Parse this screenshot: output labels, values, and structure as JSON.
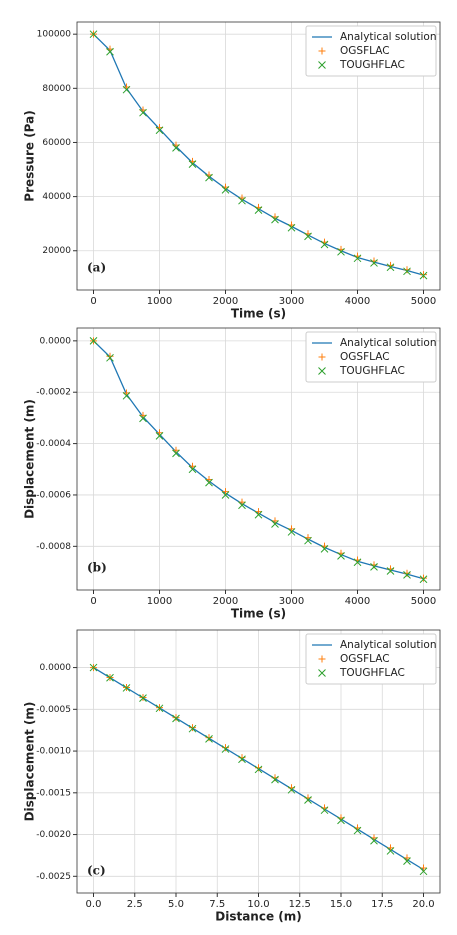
{
  "chart_data": [
    {
      "type": "line",
      "panel_label": "(a)",
      "x_label": "Time (s)",
      "y_label": "Pressure (Pa)",
      "x": [
        0,
        250,
        500,
        750,
        1000,
        1250,
        1500,
        1750,
        2000,
        2250,
        2500,
        2750,
        3000,
        3250,
        3500,
        3750,
        4000,
        4250,
        4500,
        4750,
        5000
      ],
      "series": [
        {
          "name": "Analytical solution",
          "color": "#1f77b4",
          "marker": "line",
          "values": [
            100000,
            94000,
            80000,
            71500,
            65000,
            58500,
            52500,
            47500,
            43000,
            39000,
            35500,
            32000,
            29000,
            25800,
            22700,
            20000,
            17500,
            15800,
            14200,
            12700,
            11000
          ]
        },
        {
          "name": "OGSFLAC",
          "color": "#ff7f0e",
          "marker": "+",
          "values": [
            100000,
            94500,
            80500,
            72000,
            65500,
            59000,
            53000,
            48000,
            43500,
            39500,
            36000,
            32500,
            29500,
            26300,
            23200,
            20500,
            18000,
            16200,
            14600,
            13000,
            11200
          ]
        },
        {
          "name": "TOUGHFLAC",
          "color": "#2ca02c",
          "marker": "x",
          "values": [
            100000,
            93500,
            79500,
            71000,
            64500,
            58000,
            52000,
            47000,
            42500,
            38500,
            35000,
            31500,
            28500,
            25300,
            22300,
            19600,
            17200,
            15500,
            13900,
            12400,
            10800
          ]
        }
      ],
      "xlim": [
        -250,
        5250
      ],
      "ylim": [
        5500,
        104500
      ],
      "xticks": [
        0,
        1000,
        2000,
        3000,
        4000,
        5000
      ],
      "yticks": [
        20000,
        40000,
        60000,
        80000,
        100000
      ],
      "grid": true,
      "legend": "upper right"
    },
    {
      "type": "line",
      "panel_label": "(b)",
      "x_label": "Time (s)",
      "y_label": "Displacement (m)",
      "x": [
        0,
        250,
        500,
        750,
        1000,
        1250,
        1500,
        1750,
        2000,
        2250,
        2500,
        2750,
        3000,
        3250,
        3500,
        3750,
        4000,
        4250,
        4500,
        4750,
        5000
      ],
      "series": [
        {
          "name": "Analytical solution",
          "color": "#1f77b4",
          "marker": "line",
          "values": [
            0,
            -6.24e-05,
            -0.000208,
            -0.000296,
            -0.000364,
            -0.000432,
            -0.000494,
            -0.000546,
            -0.000593,
            -0.000634,
            -0.000671,
            -0.000707,
            -0.000738,
            -0.000772,
            -0.000804,
            -0.000832,
            -0.000858,
            -0.000876,
            -0.000892,
            -0.000908,
            -0.000926
          ]
        },
        {
          "name": "OGSFLAC",
          "color": "#ff7f0e",
          "marker": "+",
          "values": [
            0,
            -6e-05,
            -0.000203,
            -0.00029,
            -0.000358,
            -0.000426,
            -0.000488,
            -0.00054,
            -0.000587,
            -0.000628,
            -0.000665,
            -0.000701,
            -0.000732,
            -0.000766,
            -0.000799,
            -0.000827,
            -0.000853,
            -0.000872,
            -0.000888,
            -0.000905,
            -0.000924
          ]
        },
        {
          "name": "TOUGHFLAC",
          "color": "#2ca02c",
          "marker": "x",
          "values": [
            0,
            -6.6e-05,
            -0.000214,
            -0.000302,
            -0.00037,
            -0.000438,
            -0.0005,
            -0.000552,
            -0.0006,
            -0.00064,
            -0.000677,
            -0.000713,
            -0.000744,
            -0.000778,
            -0.00081,
            -0.000837,
            -0.000862,
            -0.00088,
            -0.000896,
            -0.000911,
            -0.000928
          ]
        }
      ],
      "xlim": [
        -250,
        5250
      ],
      "ylim": [
        -0.00097,
        5e-05
      ],
      "xticks": [
        0,
        1000,
        2000,
        3000,
        4000,
        5000
      ],
      "yticks": [
        {
          "value": -0.0008,
          "label": "-0.0008"
        },
        {
          "value": -0.0006,
          "label": "-0.0006"
        },
        {
          "value": -0.0004,
          "label": "-0.0004"
        },
        {
          "value": -0.0002,
          "label": "-0.0002"
        },
        {
          "value": 0,
          "label": "0.0000"
        }
      ],
      "grid": true,
      "legend": "upper right"
    },
    {
      "type": "line",
      "panel_label": "(c)",
      "x_label": "Distance (m)",
      "y_label": "Displacement (m)",
      "x": [
        0,
        1,
        2,
        3,
        4,
        5,
        6,
        7,
        8,
        9,
        10,
        11,
        12,
        13,
        14,
        15,
        16,
        17,
        18,
        19,
        20
      ],
      "series": [
        {
          "name": "Analytical solution",
          "color": "#1f77b4",
          "marker": "line",
          "values": [
            0,
            -0.000121,
            -0.000242,
            -0.000363,
            -0.000484,
            -0.000605,
            -0.000726,
            -0.000847,
            -0.000968,
            -0.001089,
            -0.00121,
            -0.001331,
            -0.001452,
            -0.001573,
            -0.001694,
            -0.001815,
            -0.001936,
            -0.002057,
            -0.002178,
            -0.002299,
            -0.00242
          ]
        },
        {
          "name": "OGSFLAC",
          "color": "#ff7f0e",
          "marker": "+",
          "values": [
            0,
            -0.000119,
            -0.000239,
            -0.000359,
            -0.000479,
            -0.000599,
            -0.000719,
            -0.000839,
            -0.000959,
            -0.001079,
            -0.0012,
            -0.00132,
            -0.00144,
            -0.00156,
            -0.00168,
            -0.0018,
            -0.00192,
            -0.00204,
            -0.00216,
            -0.00228,
            -0.0024
          ]
        },
        {
          "name": "TOUGHFLAC",
          "color": "#2ca02c",
          "marker": "x",
          "values": [
            0,
            -0.000122,
            -0.000244,
            -0.000366,
            -0.000488,
            -0.00061,
            -0.000732,
            -0.000854,
            -0.000976,
            -0.001098,
            -0.00122,
            -0.001342,
            -0.001464,
            -0.001586,
            -0.001708,
            -0.00183,
            -0.001952,
            -0.002074,
            -0.002196,
            -0.002318,
            -0.00244
          ]
        }
      ],
      "xlim": [
        -1,
        21
      ],
      "ylim": [
        -0.0027,
        0.00045
      ],
      "xticks": [
        {
          "value": 0,
          "label": "0.0"
        },
        2.5,
        {
          "value": 5,
          "label": "5.0"
        },
        7.5,
        {
          "value": 10,
          "label": "10.0"
        },
        12.5,
        {
          "value": 15,
          "label": "15.0"
        },
        17.5,
        {
          "value": 20,
          "label": "20.0"
        }
      ],
      "yticks": [
        {
          "value": -0.0025,
          "label": "-0.0025"
        },
        {
          "value": -0.002,
          "label": "-0.0020"
        },
        {
          "value": -0.0015,
          "label": "-0.0015"
        },
        {
          "value": -0.001,
          "label": "-0.0010"
        },
        {
          "value": -0.0005,
          "label": "-0.0005"
        },
        {
          "value": 0,
          "label": "0.0000"
        }
      ],
      "grid": true,
      "legend": "upper right"
    }
  ]
}
